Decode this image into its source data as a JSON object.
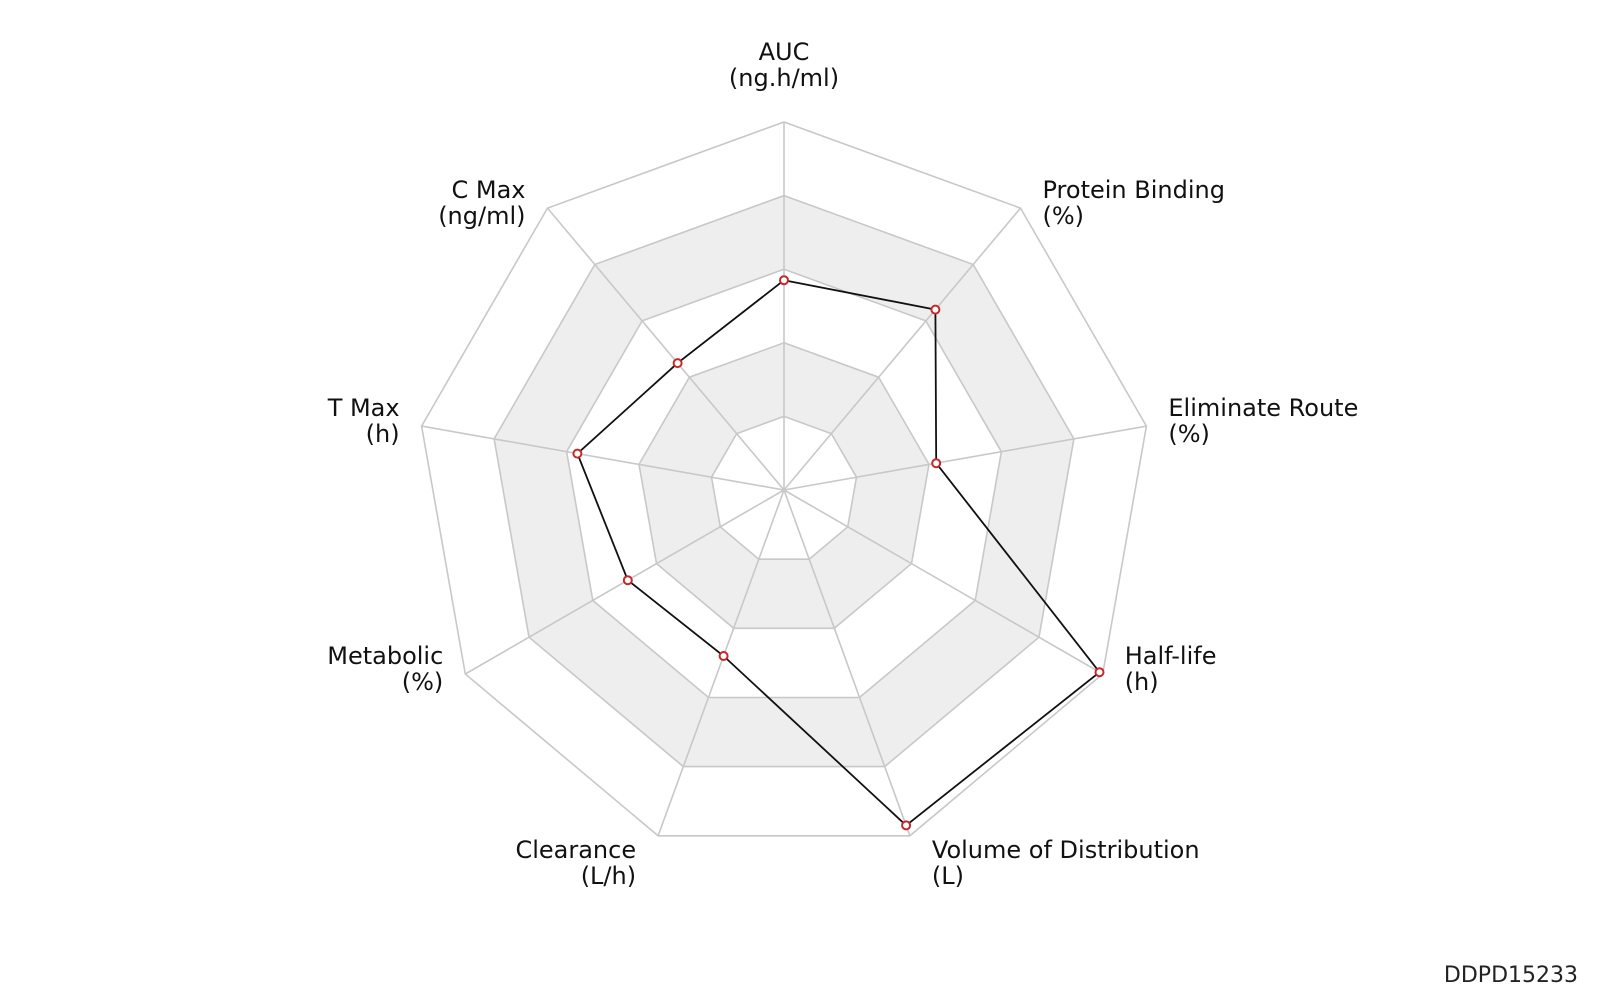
{
  "chart_data": {
    "type": "radar",
    "axes": [
      {
        "name": "AUC",
        "unit": "(ng.h/ml)"
      },
      {
        "name": "Protein Binding",
        "unit": "(%)"
      },
      {
        "name": "Eliminate Route",
        "unit": "(%)"
      },
      {
        "name": "Half-life",
        "unit": "(h)"
      },
      {
        "name": "Volume of Distribution",
        "unit": "(L)"
      },
      {
        "name": "Clearance",
        "unit": "(L/h)"
      },
      {
        "name": "Metabolic",
        "unit": "(%)"
      },
      {
        "name": "T Max",
        "unit": "(h)"
      },
      {
        "name": "C Max",
        "unit": "(ng/ml)"
      }
    ],
    "rings": 5,
    "range": [
      0,
      1
    ],
    "values": [
      0.57,
      0.64,
      0.42,
      0.99,
      0.97,
      0.48,
      0.49,
      0.57,
      0.45
    ],
    "colors": {
      "line": "#111111",
      "marker": "#c62828",
      "grid": "#c8c8c8",
      "band": "#eeeeee"
    }
  },
  "figure_code": "DDPD15233"
}
